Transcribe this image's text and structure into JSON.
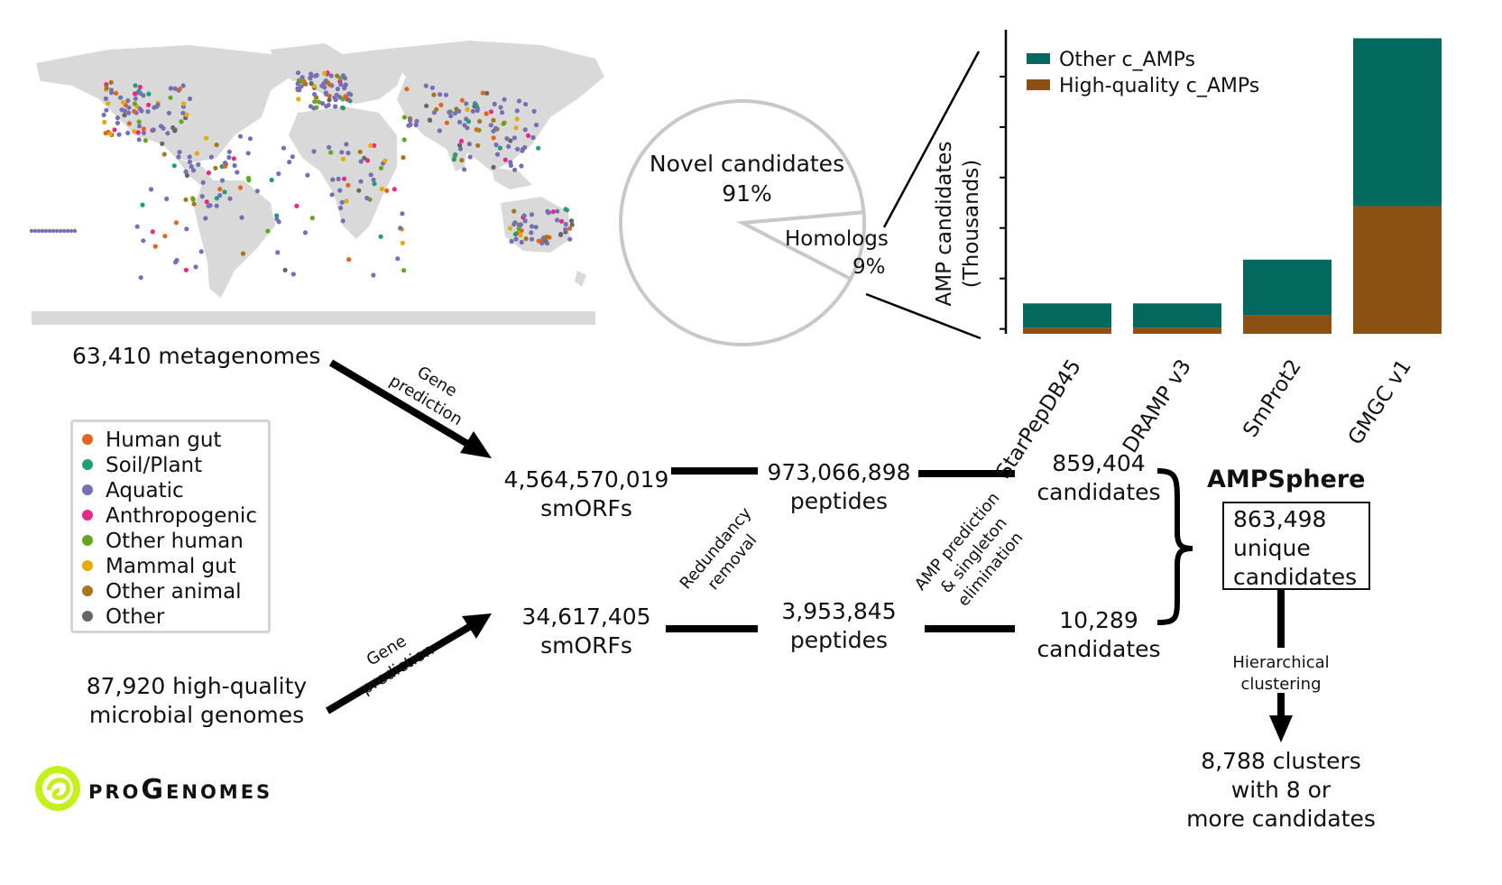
{
  "map": {
    "caption": "63,410 metagenomes"
  },
  "legend": {
    "items": [
      {
        "label": "Human gut",
        "color": "#e1661d"
      },
      {
        "label": "Soil/Plant",
        "color": "#1f9e77"
      },
      {
        "label": "Aquatic",
        "color": "#7570b3"
      },
      {
        "label": "Anthropogenic",
        "color": "#e7298a"
      },
      {
        "label": "Other human",
        "color": "#66a61e"
      },
      {
        "label": "Mammal gut",
        "color": "#e6ab02"
      },
      {
        "label": "Other animal",
        "color": "#a6761d"
      },
      {
        "label": "Other",
        "color": "#666666"
      }
    ]
  },
  "genomes": {
    "caption_line1": "87,920 high-quality",
    "caption_line2": "microbial genomes",
    "logo_text": "proGenomes",
    "logo_color": "#c6f01b"
  },
  "flow": {
    "gene_prediction_1": "Gene",
    "gene_prediction_2": "prediction",
    "smorfs_meta_value": "4,564,570,019",
    "smorfs_meta_unit": "smORFs",
    "smorfs_gen_value": "34,617,405",
    "smorfs_gen_unit": "smORFs",
    "redundancy_1": "Redundancy",
    "redundancy_2": "removal",
    "peptides_meta_value": "973,066,898",
    "peptides_meta_unit": "peptides",
    "peptides_gen_value": "3,953,845",
    "peptides_gen_unit": "peptides",
    "amp_pred_1": "AMP prediction",
    "amp_pred_2": "& singleton",
    "amp_pred_3": "elimination",
    "cand_meta_value": "859,404",
    "cand_meta_unit": "candidates",
    "cand_gen_value": "10,289",
    "cand_gen_unit": "candidates"
  },
  "ampsphere": {
    "title": "AMPSphere",
    "box_line1": "863,498",
    "box_line2": "unique",
    "box_line3": "candidates",
    "clustering_1": "Hierarchical",
    "clustering_2": "clustering",
    "clusters_line1": "8,788 clusters",
    "clusters_line2": "with 8 or",
    "clusters_line3": "more candidates"
  },
  "pie": {
    "novel_label": "Novel candidates",
    "novel_pct": "91%",
    "homolog_label": "Homologs",
    "homolog_pct": "9%",
    "novel_fraction": 0.91,
    "homolog_fraction": 0.09
  },
  "chart_data": {
    "type": "bar",
    "stacked": true,
    "categories": [
      "StarPepDB45",
      "DRAMP v3",
      "SmProt2",
      "GMGC v1"
    ],
    "series": [
      {
        "name": "High-quality c_AMPs",
        "color": "#8a5113",
        "values": [
          1.0,
          1.0,
          3.0,
          21.0
        ]
      },
      {
        "name": "Other c_AMPs",
        "color": "#03695f",
        "values": [
          4.0,
          4.0,
          9.2,
          27.6
        ]
      }
    ],
    "ylabel_line1": "AMP candidates",
    "ylabel_line2": "(Thousands)",
    "ylim": [
      0,
      50
    ],
    "legend_position": "top-left"
  }
}
